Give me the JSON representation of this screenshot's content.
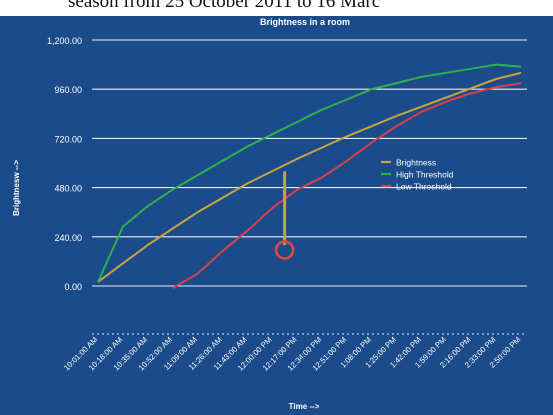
{
  "page": {
    "caption": "season from 25 October 2011 to 16 Marc"
  },
  "colors": {
    "background": "#1c4b8c",
    "grid": "#e8eef5",
    "text": "#ffffff",
    "brightness": "#c9a43a",
    "high_threshold": "#2eb04a",
    "low_threshold": "#d8404a",
    "annotation_circle": "#e24a3a"
  },
  "chart_data": {
    "type": "line",
    "title": "Brightness in a room",
    "xlabel": "Time -->",
    "ylabel": "Brightnesw -->",
    "ylim": [
      -240,
      1200
    ],
    "y_ticks": [
      "1,200.00",
      "960.00",
      "720.00",
      "480.00",
      "240.00",
      "0.00"
    ],
    "y_tick_values": [
      1200,
      960,
      720,
      480,
      240,
      0
    ],
    "x_ticks": [
      "10:01:00 AM",
      "10:18:00 AM",
      "10:35:00 AM",
      "10:52:00 AM",
      "11:09:00 AM",
      "11:26:00 AM",
      "11:43:00 AM",
      "12:00:00 PM",
      "12:17:00 PM",
      "12:34:00 PM",
      "12:51:00 PM",
      "1:08:00 PM",
      "1:25:00 PM",
      "1:42:00 PM",
      "1:59:00 PM",
      "2:16:00 PM",
      "2:33:00 PM",
      "2:50:00 PM"
    ],
    "legend_position": "right",
    "grid": true,
    "series": [
      {
        "name": "Brightness",
        "x": [
          0,
          2,
          4,
          6,
          8,
          10,
          12,
          14,
          16,
          17
        ],
        "y": [
          20,
          200,
          360,
          500,
          620,
          730,
          830,
          920,
          1010,
          1040
        ]
      },
      {
        "name": "High Threshold",
        "x": [
          0,
          1,
          2,
          3,
          4,
          5,
          6,
          7,
          8,
          9,
          10,
          11,
          12,
          13,
          14,
          15,
          16,
          17
        ],
        "y": [
          20,
          290,
          390,
          470,
          540,
          610,
          680,
          740,
          800,
          860,
          910,
          960,
          990,
          1020,
          1040,
          1060,
          1080,
          1070
        ]
      },
      {
        "name": "Low Threshold",
        "x": [
          3,
          4,
          5,
          6,
          7,
          8,
          9,
          10,
          11,
          12,
          13,
          14,
          15,
          16,
          17
        ],
        "y": [
          -10,
          60,
          170,
          270,
          380,
          470,
          530,
          610,
          700,
          780,
          850,
          900,
          940,
          970,
          990
        ]
      }
    ],
    "annotation": {
      "x": 7.5,
      "y_from": 560,
      "y_to": 200
    }
  }
}
